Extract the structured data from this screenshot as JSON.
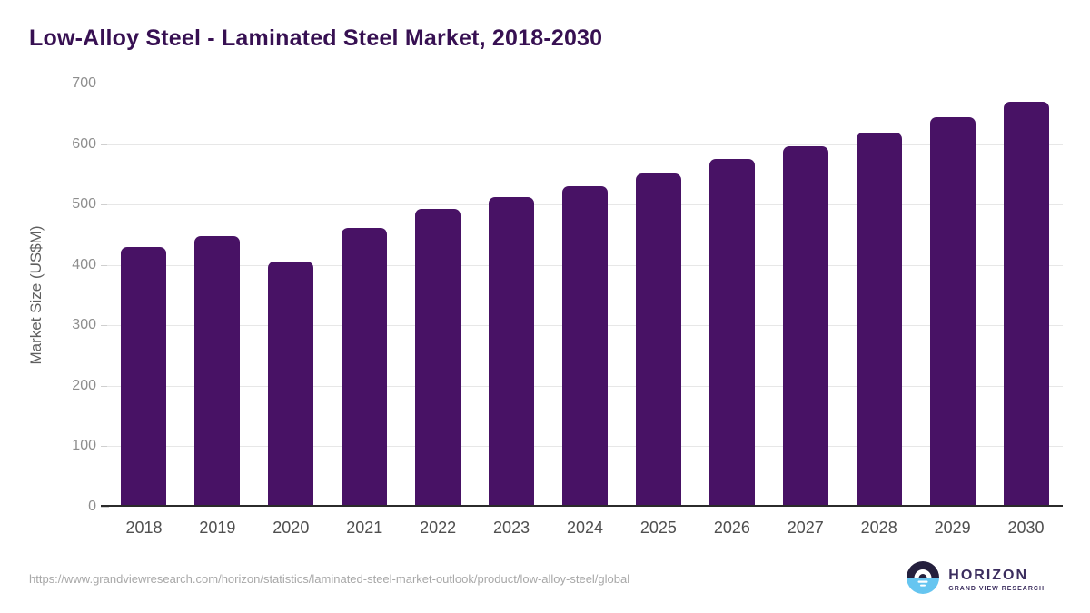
{
  "title": "Low-Alloy Steel - Laminated Steel Market, 2018-2030",
  "chart_data": {
    "type": "bar",
    "categories": [
      "2018",
      "2019",
      "2020",
      "2021",
      "2022",
      "2023",
      "2024",
      "2025",
      "2026",
      "2027",
      "2028",
      "2029",
      "2030"
    ],
    "values": [
      430,
      448,
      405,
      461,
      492,
      513,
      531,
      552,
      575,
      597,
      619,
      645,
      670
    ],
    "title": "Low-Alloy Steel - Laminated Steel Market, 2018-2030",
    "xlabel": "",
    "ylabel": "Market Size (US$M)",
    "ylim": [
      0,
      700
    ],
    "yticks": [
      0,
      100,
      200,
      300,
      400,
      500,
      600,
      700
    ],
    "grid": true,
    "legend": "none",
    "bar_color": "#481265"
  },
  "footer": {
    "source_url": "https://www.grandviewresearch.com/horizon/statistics/laminated-steel-market-outlook/product/low-alloy-steel/global",
    "logo": {
      "name": "HORIZON",
      "subtitle": "GRAND VIEW RESEARCH"
    }
  },
  "colors": {
    "title_text": "#371052",
    "bar": "#481265",
    "gridline": "#e7e7e7",
    "axis_line": "#2b2b2b",
    "y_tick_text": "#8e8e8e",
    "x_tick_text": "#4f4f4f",
    "url_text": "#a8a8a8",
    "logo_dark": "#241f3d",
    "logo_blue": "#66c5f0",
    "logo_text": "#3b2d5e"
  }
}
